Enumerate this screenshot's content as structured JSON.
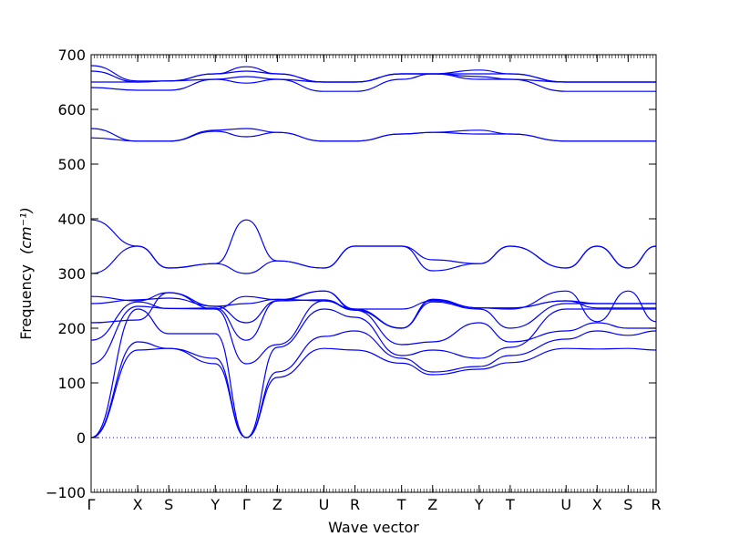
{
  "chart_data": {
    "type": "line",
    "title": "",
    "xlabel": "Wave vector",
    "ylabel_text": "Frequency",
    "ylabel_unit": "(cm⁻¹)",
    "ylim": [
      -100,
      700
    ],
    "yticks": [
      -100,
      0,
      100,
      200,
      300,
      400,
      500,
      600,
      700
    ],
    "xlim": [
      0,
      18.2
    ],
    "high_symmetry_points": [
      {
        "label": "Γ",
        "x": 0
      },
      {
        "label": "X",
        "x": 1.5
      },
      {
        "label": "S",
        "x": 2.5
      },
      {
        "label": "Y",
        "x": 4.0
      },
      {
        "label": "Γ",
        "x": 5.0
      },
      {
        "label": "Z",
        "x": 6.0
      },
      {
        "label": "U",
        "x": 7.5
      },
      {
        "label": "R",
        "x": 8.5
      },
      {
        "label": "T",
        "x": 10.0
      },
      {
        "label": "Z",
        "x": 11.0
      },
      {
        "label": "Y",
        "x": 12.5
      },
      {
        "label": "T",
        "x": 13.5
      },
      {
        "label": "U",
        "x": 15.3
      },
      {
        "label": "X",
        "x": 16.3
      },
      {
        "label": "S",
        "x": 17.3
      },
      {
        "label": "R",
        "x": 18.2
      }
    ],
    "line_color": "#0000ff",
    "zero_line": {
      "y": 0,
      "style": "dotted"
    },
    "series": [
      {
        "x": [
          0,
          1.5,
          2.5,
          4.0,
          5.0,
          6.0,
          7.5,
          8.5,
          10.0,
          11.0,
          12.5,
          13.5,
          15.3,
          16.3,
          17.3,
          18.2
        ],
        "values": [
          0,
          160,
          163,
          135,
          0,
          110,
          163,
          160,
          136,
          115,
          125,
          137,
          163,
          162,
          163,
          160
        ]
      },
      {
        "x": [
          0,
          1.5,
          2.5,
          4.0,
          5.0,
          6.0,
          7.5,
          8.5,
          10.0,
          11.0,
          12.5,
          13.5,
          15.3,
          16.3,
          17.3,
          18.2
        ],
        "values": [
          0,
          175,
          163,
          145,
          0,
          120,
          185,
          195,
          145,
          120,
          130,
          150,
          180,
          195,
          187,
          195
        ]
      },
      {
        "x": [
          0,
          1.5,
          2.5,
          4.0,
          5.0,
          6.0,
          7.5,
          8.5,
          10.0,
          11.0,
          12.5,
          13.5,
          15.3,
          16.3,
          17.3,
          18.2
        ],
        "values": [
          0,
          235,
          190,
          190,
          0,
          165,
          235,
          220,
          150,
          160,
          145,
          165,
          235,
          235,
          235,
          235
        ]
      },
      {
        "x": [
          0,
          1.5,
          2.5,
          4.0,
          5.0,
          6.0,
          7.5,
          8.5,
          10.0,
          11.0,
          12.5,
          13.5,
          15.3,
          16.3,
          17.3,
          18.2
        ],
        "values": [
          135,
          240,
          236,
          235,
          135,
          170,
          250,
          233,
          170,
          175,
          210,
          175,
          195,
          210,
          200,
          200
        ]
      },
      {
        "x": [
          0,
          1.5,
          2.5,
          4.0,
          5.0,
          6.0,
          7.5,
          8.5,
          10.0,
          11.0,
          12.5,
          13.5,
          15.3,
          16.3,
          17.3,
          18.2
        ],
        "values": [
          178,
          248,
          236,
          237,
          178,
          250,
          252,
          233,
          200,
          248,
          235,
          200,
          245,
          245,
          245,
          245
        ]
      },
      {
        "x": [
          0,
          1.5,
          2.5,
          4.0,
          5.0,
          6.0,
          7.5,
          8.5,
          10.0,
          11.0,
          12.5,
          13.5,
          15.3,
          16.3,
          17.3,
          18.2
        ],
        "values": [
          210,
          215,
          265,
          240,
          210,
          250,
          268,
          233,
          200,
          252,
          237,
          235,
          268,
          212,
          268,
          212
        ]
      },
      {
        "x": [
          0,
          1.5,
          2.5,
          4.0,
          5.0,
          6.0,
          7.5,
          8.5,
          10.0,
          11.0,
          12.5,
          13.5,
          15.3,
          16.3,
          17.3,
          18.2
        ],
        "values": [
          245,
          252,
          255,
          240,
          245,
          253,
          250,
          235,
          200,
          253,
          237,
          237,
          250,
          237,
          237,
          237
        ]
      },
      {
        "x": [
          0,
          1.5,
          2.5,
          4.0,
          5.0,
          6.0,
          7.5,
          8.5,
          10.0,
          11.0,
          12.5,
          13.5,
          15.3,
          16.3,
          17.3,
          18.2
        ],
        "values": [
          258,
          250,
          265,
          235,
          258,
          252,
          268,
          235,
          235,
          250,
          237,
          237,
          250,
          245,
          245,
          245
        ]
      },
      {
        "x": [
          0,
          1.5,
          2.5,
          4.0,
          5.0,
          6.0,
          7.5,
          8.5,
          10.0,
          11.0,
          12.5,
          13.5,
          15.3,
          16.3,
          17.3,
          18.2
        ],
        "values": [
          300,
          350,
          310,
          318,
          300,
          323,
          310,
          350,
          350,
          305,
          318,
          350,
          310,
          350,
          310,
          350
        ]
      },
      {
        "x": [
          0,
          1.5,
          2.5,
          4.0,
          5.0,
          6.0,
          7.5,
          8.5,
          10.0,
          11.0,
          12.5,
          13.5,
          15.3,
          16.3,
          17.3,
          18.2
        ],
        "values": [
          398,
          350,
          310,
          318,
          398,
          323,
          310,
          350,
          350,
          325,
          318,
          350,
          310,
          350,
          310,
          350
        ]
      },
      {
        "x": [
          0,
          1.5,
          2.5,
          4.0,
          5.0,
          6.0,
          7.5,
          8.5,
          10.0,
          11.0,
          12.5,
          13.5,
          15.3,
          16.3,
          17.3,
          18.2
        ],
        "values": [
          548,
          542,
          542,
          560,
          550,
          558,
          542,
          542,
          555,
          558,
          562,
          555,
          542,
          542,
          542,
          542
        ]
      },
      {
        "x": [
          0,
          1.5,
          2.5,
          4.0,
          5.0,
          6.0,
          7.5,
          8.5,
          10.0,
          11.0,
          12.5,
          13.5,
          15.3,
          16.3,
          17.3,
          18.2
        ],
        "values": [
          565,
          542,
          542,
          562,
          565,
          558,
          542,
          542,
          555,
          558,
          555,
          555,
          542,
          542,
          542,
          542
        ]
      },
      {
        "x": [
          0,
          1.5,
          2.5,
          4.0,
          5.0,
          6.0,
          7.5,
          8.5,
          10.0,
          11.0,
          12.5,
          13.5,
          15.3,
          16.3,
          17.3,
          18.2
        ],
        "values": [
          640,
          635,
          635,
          655,
          648,
          655,
          633,
          633,
          655,
          665,
          655,
          655,
          633,
          633,
          633,
          633
        ]
      },
      {
        "x": [
          0,
          1.5,
          2.5,
          4.0,
          5.0,
          6.0,
          7.5,
          8.5,
          10.0,
          11.0,
          12.5,
          13.5,
          15.3,
          16.3,
          17.3,
          18.2
        ],
        "values": [
          650,
          650,
          652,
          655,
          660,
          655,
          650,
          650,
          665,
          665,
          660,
          655,
          650,
          650,
          650,
          650
        ]
      },
      {
        "x": [
          0,
          1.5,
          2.5,
          4.0,
          5.0,
          6.0,
          7.5,
          8.5,
          10.0,
          11.0,
          12.5,
          13.5,
          15.3,
          16.3,
          17.3,
          18.2
        ],
        "values": [
          670,
          650,
          652,
          665,
          670,
          665,
          650,
          650,
          665,
          665,
          665,
          665,
          650,
          650,
          650,
          650
        ]
      },
      {
        "x": [
          0,
          1.5,
          2.5,
          4.0,
          5.0,
          6.0,
          7.5,
          8.5,
          10.0,
          11.0,
          12.5,
          13.5,
          15.3,
          16.3,
          17.3,
          18.2
        ],
        "values": [
          680,
          652,
          652,
          665,
          678,
          665,
          650,
          650,
          665,
          665,
          672,
          665,
          650,
          650,
          650,
          650
        ]
      }
    ]
  }
}
